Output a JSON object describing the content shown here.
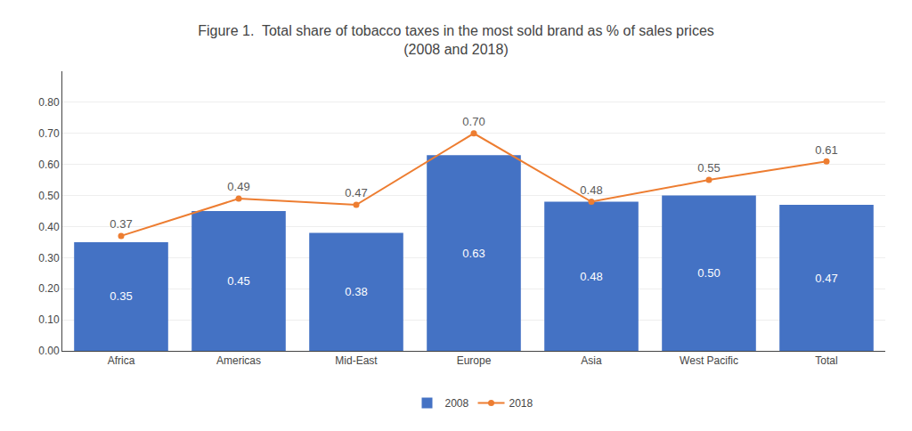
{
  "chart_data": {
    "type": "bar",
    "title": "Figure 1.  Total share of tobacco taxes in the most sold brand as % of sales prices\n(2008 and 2018)",
    "categories": [
      "Africa",
      "Americas",
      "Mid-East",
      "Europe",
      "Asia",
      "West Pacific",
      "Total"
    ],
    "series": [
      {
        "name": "2008",
        "type": "bar",
        "color": "#4472C4",
        "values": [
          0.35,
          0.45,
          0.38,
          0.63,
          0.48,
          0.5,
          0.47
        ],
        "value_labels": [
          "0.35",
          "0.45",
          "0.38",
          "0.63",
          "0.48",
          "0.50",
          "0.47"
        ]
      },
      {
        "name": "2018",
        "type": "line",
        "color": "#ED7D31",
        "marker": "circle",
        "values": [
          0.37,
          0.49,
          0.47,
          0.7,
          0.48,
          0.55,
          0.61
        ],
        "value_labels": [
          "0.37",
          "0.49",
          "0.47",
          "0.70",
          "0.48",
          "0.55",
          "0.61"
        ]
      }
    ],
    "ylim": [
      0.0,
      0.9
    ],
    "yticks": [
      {
        "value": 0.0,
        "label": "0.00"
      },
      {
        "value": 0.1,
        "label": "0.10"
      },
      {
        "value": 0.2,
        "label": "0.20"
      },
      {
        "value": 0.3,
        "label": "0.30"
      },
      {
        "value": 0.4,
        "label": "0.40"
      },
      {
        "value": 0.5,
        "label": "0.50"
      },
      {
        "value": 0.6,
        "label": "0.60"
      },
      {
        "value": 0.7,
        "label": "0.70"
      },
      {
        "value": 0.8,
        "label": "0.80"
      }
    ],
    "grid": true,
    "legend": "bottom",
    "data_labels": true
  }
}
